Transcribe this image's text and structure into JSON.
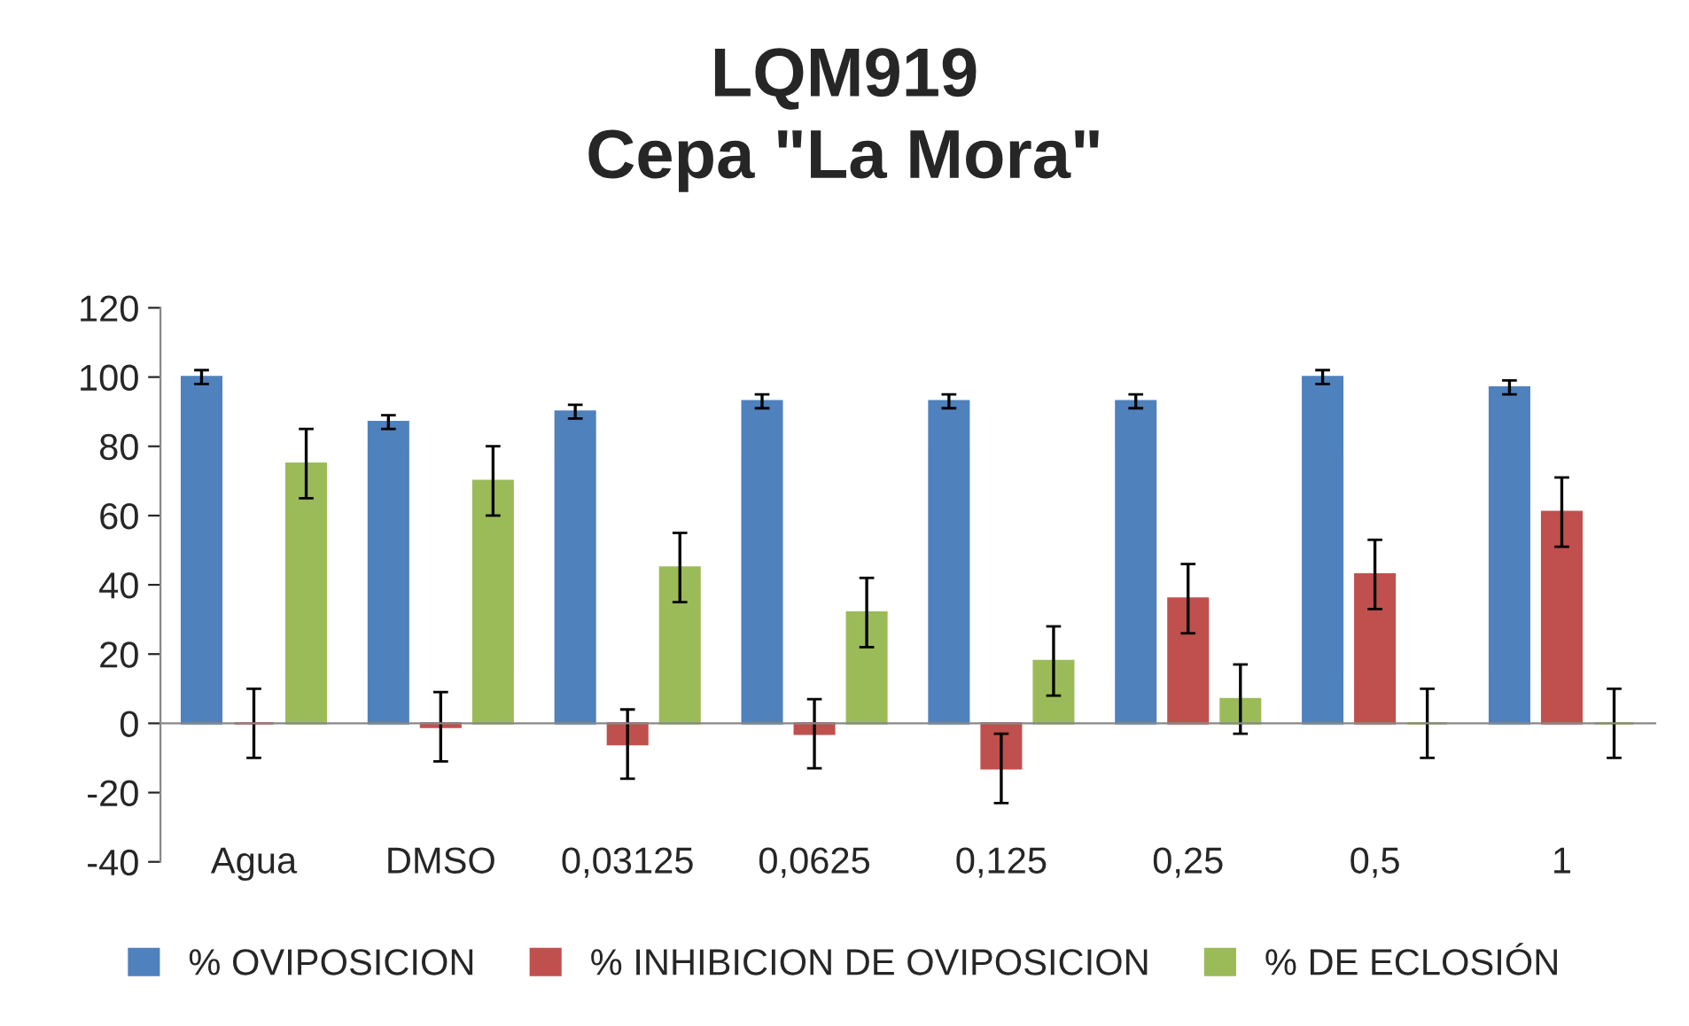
{
  "chart_data": {
    "type": "bar",
    "title": "LQM919\nCepa \"La Mora\"",
    "categories": [
      "Agua",
      "DMSO",
      "0,03125",
      "0,0625",
      "0,125",
      "0,25",
      "0,5",
      "1"
    ],
    "series": [
      {
        "name": "% OVIPOSICION",
        "color": "#4f81bd",
        "values": [
          100,
          87,
          90,
          93,
          93,
          93,
          100,
          97
        ],
        "errors": [
          2,
          2,
          2,
          2,
          2,
          2,
          2,
          2
        ]
      },
      {
        "name": "% INHIBICION DE OVIPOSICION",
        "color": "#c0504d",
        "values": [
          0,
          -1,
          -6,
          -3,
          -13,
          36,
          43,
          61
        ],
        "errors": [
          10,
          10,
          10,
          10,
          10,
          10,
          10,
          10
        ]
      },
      {
        "name": "% DE ECLOSIÓN",
        "color": "#9bbb59",
        "values": [
          75,
          70,
          45,
          32,
          18,
          7,
          0,
          0
        ],
        "errors": [
          10,
          10,
          10,
          10,
          10,
          10,
          10,
          10
        ]
      }
    ],
    "ylim": [
      -40,
      120
    ],
    "yticks": [
      -40,
      -20,
      0,
      20,
      40,
      60,
      80,
      100,
      120
    ],
    "legend": "bottom"
  }
}
